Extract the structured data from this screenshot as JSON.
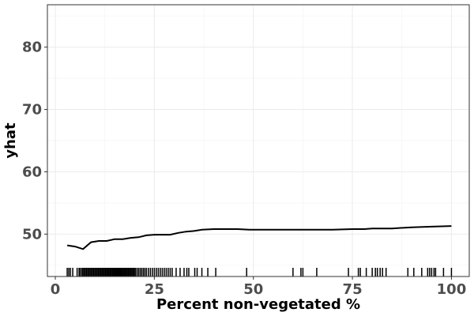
{
  "chart_data": {
    "type": "line",
    "title": "",
    "xlabel": "Percent non-vegetated %",
    "ylabel": "yhat",
    "xlim": [
      -2,
      104.5
    ],
    "ylim": [
      43.2,
      86.8
    ],
    "x_ticks": [
      0,
      25,
      50,
      75,
      100
    ],
    "y_ticks": [
      50,
      60,
      70,
      80
    ],
    "grid": true,
    "legend": "none",
    "line_color": "#000000",
    "series": [
      {
        "x": [
          3,
          5,
          7,
          9,
          11,
          13,
          15,
          17,
          19,
          21,
          23,
          25,
          27,
          29,
          31,
          33,
          35,
          37,
          40,
          43,
          46,
          49,
          52,
          55,
          60,
          65,
          70,
          75,
          78,
          80,
          85,
          90,
          95,
          100
        ],
        "y": [
          48.2,
          48.0,
          47.6,
          48.7,
          48.9,
          48.9,
          49.2,
          49.2,
          49.4,
          49.5,
          49.8,
          49.9,
          49.9,
          49.9,
          50.2,
          50.4,
          50.5,
          50.7,
          50.8,
          50.8,
          50.8,
          50.7,
          50.7,
          50.7,
          50.7,
          50.7,
          50.7,
          50.8,
          50.8,
          50.9,
          50.9,
          51.1,
          51.2,
          51.3
        ]
      }
    ],
    "rug": [
      3,
      3.4,
      3.8,
      4.4,
      5.5,
      6,
      6.3,
      6.7,
      7,
      7.3,
      7.6,
      7.9,
      8.2,
      8.5,
      8.8,
      9.1,
      9.4,
      9.7,
      10,
      10.3,
      10.6,
      10.9,
      11.2,
      11.5,
      11.8,
      12.1,
      12.4,
      12.7,
      13,
      13.3,
      13.6,
      13.9,
      14.2,
      14.5,
      14.8,
      15.1,
      15.4,
      15.7,
      16,
      16.3,
      16.6,
      16.9,
      17.2,
      17.5,
      17.8,
      18.1,
      18.4,
      18.7,
      19,
      19.3,
      19.6,
      19.9,
      20.2,
      20.6,
      21,
      21.4,
      21.8,
      22.2,
      22.6,
      23,
      23.5,
      24,
      24.5,
      25,
      25.5,
      26,
      26.5,
      27,
      27.5,
      28,
      28.5,
      29,
      29.5,
      30.5,
      31.5,
      32.5,
      33.2,
      33.7,
      35.2,
      35.8,
      37,
      38.5,
      40.5,
      48.3,
      60,
      62,
      62.5,
      66,
      74,
      76.5,
      77,
      78.5,
      80,
      80.8,
      81.3,
      82,
      82.6,
      83.5,
      89,
      90.5,
      92.5,
      94,
      94.5,
      95,
      95.6,
      96,
      98,
      100
    ]
  }
}
